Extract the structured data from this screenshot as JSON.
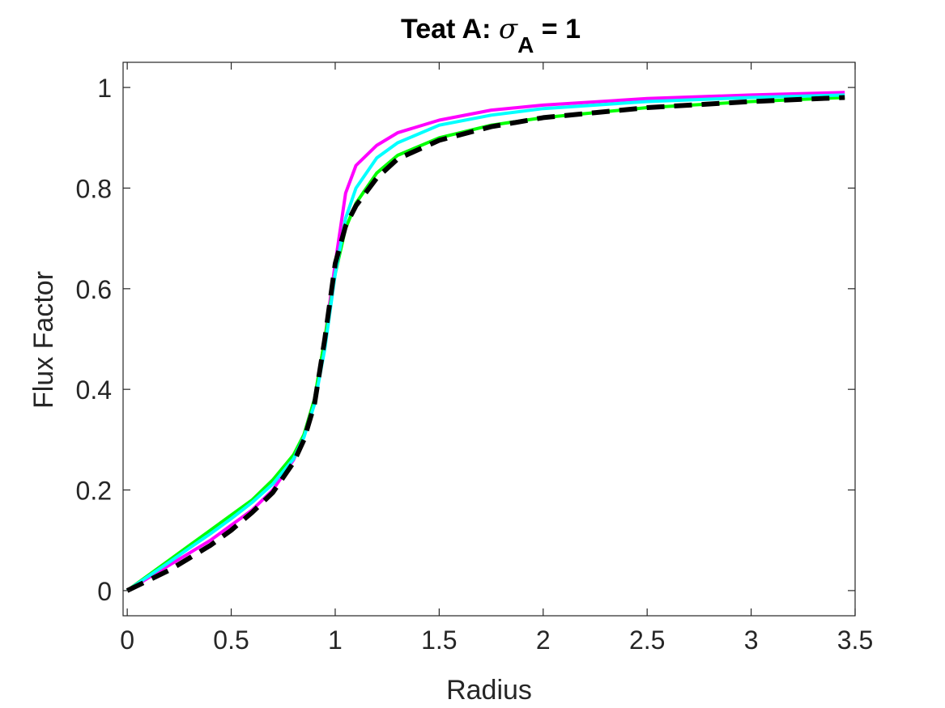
{
  "chart_data": {
    "type": "line",
    "title": {
      "prefix": "Teat A: ",
      "symbol": "σ",
      "subscript": "A",
      "suffix": " = 1"
    },
    "xlabel": "Radius",
    "ylabel": "Flux Factor",
    "xlim": [
      -0.02,
      3.5
    ],
    "ylim": [
      -0.05,
      1.05
    ],
    "xticks": [
      0,
      0.5,
      1,
      1.5,
      2,
      2.5,
      3,
      3.5
    ],
    "xtick_labels": [
      "0",
      "0.5",
      "1",
      "1.5",
      "2",
      "2.5",
      "3",
      "3.5"
    ],
    "yticks": [
      0,
      0.2,
      0.4,
      0.6,
      0.8,
      1
    ],
    "ytick_labels": [
      "0",
      "0.2",
      "0.4",
      "0.6",
      "0.8",
      "1"
    ],
    "grid": false,
    "box": true,
    "series": [
      {
        "color": "#ff00ff",
        "style": "solid",
        "x": [
          0,
          0.1,
          0.2,
          0.3,
          0.4,
          0.5,
          0.6,
          0.7,
          0.8,
          0.85,
          0.9,
          0.95,
          1.0,
          1.05,
          1.1,
          1.2,
          1.3,
          1.5,
          1.75,
          2.0,
          2.5,
          3.0,
          3.45
        ],
        "y": [
          0,
          0.025,
          0.05,
          0.075,
          0.1,
          0.13,
          0.16,
          0.2,
          0.26,
          0.31,
          0.38,
          0.5,
          0.65,
          0.79,
          0.845,
          0.885,
          0.91,
          0.935,
          0.955,
          0.965,
          0.978,
          0.985,
          0.99
        ]
      },
      {
        "color": "#00ff00",
        "style": "solid",
        "x": [
          0,
          0.1,
          0.2,
          0.3,
          0.4,
          0.5,
          0.6,
          0.7,
          0.8,
          0.85,
          0.9,
          0.95,
          1.0,
          1.05,
          1.1,
          1.2,
          1.3,
          1.5,
          1.75,
          2.0,
          2.5,
          3.0,
          3.45
        ],
        "y": [
          0,
          0.03,
          0.06,
          0.09,
          0.12,
          0.15,
          0.18,
          0.22,
          0.27,
          0.31,
          0.38,
          0.5,
          0.63,
          0.72,
          0.77,
          0.83,
          0.865,
          0.9,
          0.925,
          0.94,
          0.96,
          0.972,
          0.98
        ]
      },
      {
        "color": "#00ffff",
        "style": "solid",
        "x": [
          0,
          0.1,
          0.2,
          0.3,
          0.4,
          0.5,
          0.6,
          0.7,
          0.8,
          0.85,
          0.9,
          0.95,
          1.0,
          1.05,
          1.1,
          1.2,
          1.3,
          1.5,
          1.75,
          2.0,
          2.5,
          3.0,
          3.45
        ],
        "y": [
          0,
          0.028,
          0.056,
          0.085,
          0.113,
          0.143,
          0.175,
          0.212,
          0.262,
          0.305,
          0.37,
          0.48,
          0.63,
          0.74,
          0.8,
          0.86,
          0.89,
          0.925,
          0.945,
          0.958,
          0.972,
          0.98,
          0.985
        ]
      },
      {
        "color": "#000000",
        "style": "dashed",
        "x": [
          0,
          0.1,
          0.2,
          0.3,
          0.4,
          0.5,
          0.6,
          0.7,
          0.8,
          0.85,
          0.9,
          0.95,
          1.0,
          1.05,
          1.1,
          1.2,
          1.3,
          1.5,
          1.75,
          2.0,
          2.5,
          3.0,
          3.45
        ],
        "y": [
          0,
          0.02,
          0.04,
          0.065,
          0.09,
          0.12,
          0.155,
          0.195,
          0.255,
          0.3,
          0.37,
          0.5,
          0.65,
          0.725,
          0.765,
          0.82,
          0.858,
          0.895,
          0.922,
          0.94,
          0.96,
          0.972,
          0.98
        ]
      }
    ]
  }
}
